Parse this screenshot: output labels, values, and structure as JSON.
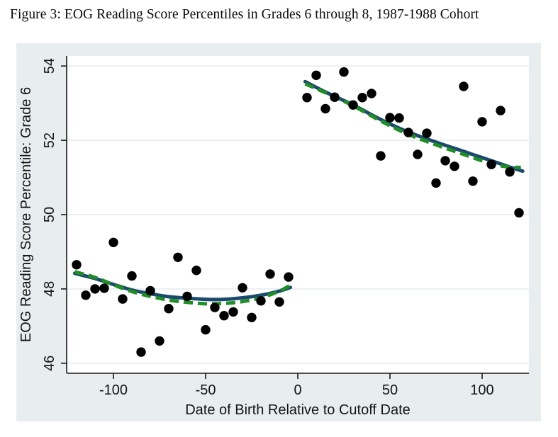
{
  "page": {
    "title": "Figure 3: EOG Reading Score Percentiles in Grades 6 through 8, 1987-1988 Cohort"
  },
  "chart_data": {
    "type": "scatter",
    "title": "Figure 3: EOG Reading Score Percentiles in Grades 6 through 8, 1987-1988 Cohort",
    "xlabel": "Date of Birth Relative to Cutoff Date",
    "ylabel": "EOG Reading Score Percentile: Grade 6",
    "xlim": [
      -125.4,
      125.4
    ],
    "ylim": [
      45.73,
      54.27
    ],
    "xticks": [
      -100,
      -50,
      0,
      50,
      100
    ],
    "yticks": [
      46,
      48,
      50,
      52,
      54
    ],
    "grid": "horizontal-only",
    "legend": "none",
    "colors": {
      "background": "#e8eef0",
      "plot_background": "#ffffff",
      "grid": "#e2eaec",
      "axis": "#1a1a1a",
      "scatter": "#000000",
      "fit_solid": "#1c4a6e",
      "fit_dashed": "#1e9023",
      "text": "#141414"
    },
    "series": [
      {
        "name": "binned-scores-left-of-cutoff",
        "kind": "scatter",
        "color": "#000000",
        "points": [
          [
            -120,
            48.65
          ],
          [
            -115,
            47.83
          ],
          [
            -110,
            48.0
          ],
          [
            -105,
            48.02
          ],
          [
            -100,
            49.25
          ],
          [
            -95,
            47.73
          ],
          [
            -90,
            48.35
          ],
          [
            -85,
            46.3
          ],
          [
            -80,
            47.95
          ],
          [
            -75,
            46.6
          ],
          [
            -70,
            47.47
          ],
          [
            -65,
            48.85
          ],
          [
            -60,
            47.8
          ],
          [
            -55,
            48.5
          ],
          [
            -50,
            46.9
          ],
          [
            -45,
            47.5
          ],
          [
            -40,
            47.28
          ],
          [
            -35,
            47.38
          ],
          [
            -30,
            48.03
          ],
          [
            -25,
            47.23
          ],
          [
            -20,
            47.68
          ],
          [
            -15,
            48.4
          ],
          [
            -10,
            47.65
          ],
          [
            -5,
            48.32
          ]
        ]
      },
      {
        "name": "binned-scores-right-of-cutoff",
        "kind": "scatter",
        "color": "#000000",
        "points": [
          [
            5,
            53.15
          ],
          [
            10,
            53.75
          ],
          [
            15,
            52.85
          ],
          [
            20,
            53.16
          ],
          [
            25,
            53.84
          ],
          [
            30,
            52.95
          ],
          [
            35,
            53.15
          ],
          [
            40,
            53.26
          ],
          [
            45,
            51.58
          ],
          [
            50,
            52.61
          ],
          [
            55,
            52.6
          ],
          [
            60,
            52.21
          ],
          [
            65,
            51.62
          ],
          [
            70,
            52.19
          ],
          [
            75,
            50.85
          ],
          [
            80,
            51.45
          ],
          [
            85,
            51.3
          ],
          [
            90,
            53.45
          ],
          [
            95,
            50.9
          ],
          [
            100,
            52.5
          ],
          [
            105,
            51.35
          ],
          [
            110,
            52.8
          ],
          [
            115,
            51.15
          ],
          [
            120,
            50.05
          ]
        ]
      },
      {
        "name": "fit-left-solid",
        "kind": "line",
        "style": "solid",
        "color": "#1c4a6e",
        "points": [
          [
            -121,
            48.42
          ],
          [
            -110,
            48.28
          ],
          [
            -100,
            48.12
          ],
          [
            -90,
            47.97
          ],
          [
            -80,
            47.87
          ],
          [
            -70,
            47.79
          ],
          [
            -60,
            47.75
          ],
          [
            -50,
            47.72
          ],
          [
            -40,
            47.72
          ],
          [
            -30,
            47.76
          ],
          [
            -20,
            47.83
          ],
          [
            -10,
            47.94
          ],
          [
            -4,
            48.04
          ]
        ]
      },
      {
        "name": "fit-left-dashed",
        "kind": "line",
        "style": "dashed",
        "color": "#1e9023",
        "points": [
          [
            -121,
            48.46
          ],
          [
            -110,
            48.31
          ],
          [
            -100,
            48.11
          ],
          [
            -90,
            47.93
          ],
          [
            -80,
            47.8
          ],
          [
            -70,
            47.7
          ],
          [
            -60,
            47.64
          ],
          [
            -50,
            47.6
          ],
          [
            -40,
            47.61
          ],
          [
            -30,
            47.66
          ],
          [
            -20,
            47.76
          ],
          [
            -10,
            47.94
          ],
          [
            -4,
            48.1
          ]
        ]
      },
      {
        "name": "fit-right-solid",
        "kind": "line",
        "style": "solid",
        "color": "#1c4a6e",
        "points": [
          [
            4,
            53.58
          ],
          [
            15,
            53.3
          ],
          [
            30,
            52.95
          ],
          [
            45,
            52.56
          ],
          [
            60,
            52.22
          ],
          [
            75,
            51.95
          ],
          [
            90,
            51.7
          ],
          [
            105,
            51.45
          ],
          [
            115,
            51.28
          ],
          [
            122,
            51.17
          ]
        ]
      },
      {
        "name": "fit-right-dashed",
        "kind": "line",
        "style": "dashed",
        "color": "#1e9023",
        "points": [
          [
            4,
            53.52
          ],
          [
            15,
            53.28
          ],
          [
            30,
            52.93
          ],
          [
            45,
            52.52
          ],
          [
            60,
            52.16
          ],
          [
            75,
            51.88
          ],
          [
            90,
            51.62
          ],
          [
            105,
            51.37
          ],
          [
            115,
            51.28
          ],
          [
            121,
            51.27
          ]
        ]
      }
    ]
  }
}
